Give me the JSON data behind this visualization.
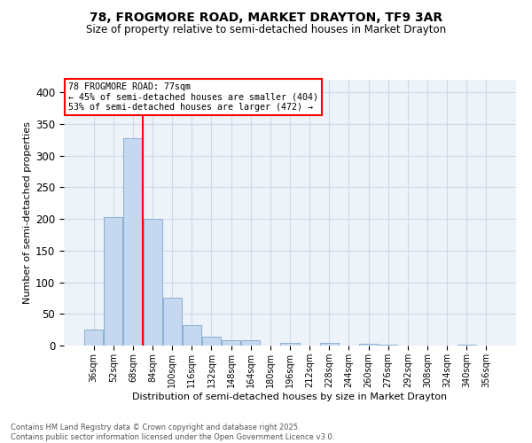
{
  "title_line1": "78, FROGMORE ROAD, MARKET DRAYTON, TF9 3AR",
  "title_line2": "Size of property relative to semi-detached houses in Market Drayton",
  "xlabel": "Distribution of semi-detached houses by size in Market Drayton",
  "ylabel": "Number of semi-detached properties",
  "categories": [
    "36sqm",
    "52sqm",
    "68sqm",
    "84sqm",
    "100sqm",
    "116sqm",
    "132sqm",
    "148sqm",
    "164sqm",
    "180sqm",
    "196sqm",
    "212sqm",
    "228sqm",
    "244sqm",
    "260sqm",
    "276sqm",
    "292sqm",
    "308sqm",
    "324sqm",
    "340sqm",
    "356sqm"
  ],
  "values": [
    25,
    203,
    327,
    200,
    75,
    32,
    14,
    8,
    9,
    0,
    4,
    0,
    4,
    0,
    3,
    1,
    0,
    0,
    0,
    1,
    0
  ],
  "bar_color": "#c5d8f0",
  "bar_edge_color": "#8ab0d4",
  "grid_color": "#d0d8e8",
  "background_color": "#eef2f9",
  "red_line_x": 2.5,
  "annotation_title": "78 FROGMORE ROAD: 77sqm",
  "annotation_line1": "← 45% of semi-detached houses are smaller (404)",
  "annotation_line2": "53% of semi-detached houses are larger (472) →",
  "footer_line1": "Contains HM Land Registry data © Crown copyright and database right 2025.",
  "footer_line2": "Contains public sector information licensed under the Open Government Licence v3.0.",
  "ylim": [
    0,
    420
  ],
  "yticks": [
    0,
    50,
    100,
    150,
    200,
    250,
    300,
    350,
    400
  ]
}
